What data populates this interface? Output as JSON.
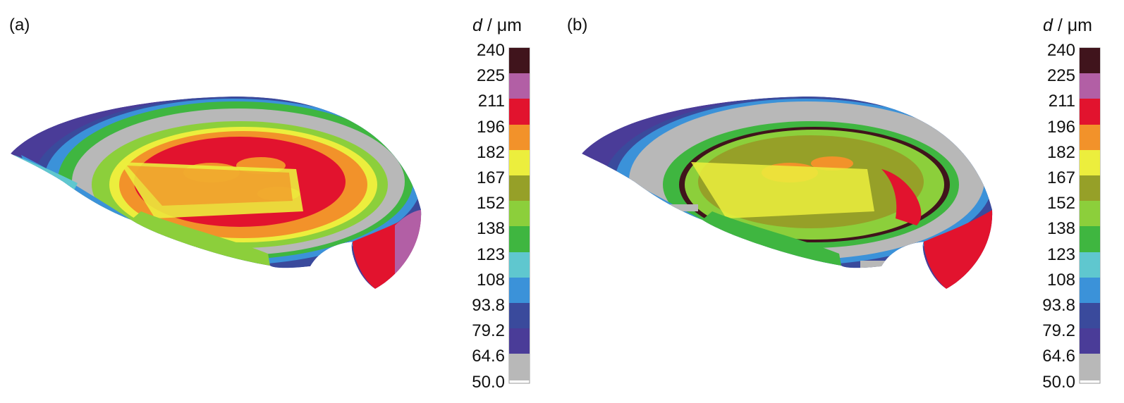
{
  "figure": {
    "panels": [
      {
        "label": "(a)",
        "colorbar": {
          "symbol": "d",
          "unit": "/ μm",
          "ticks": [
            "240",
            "225",
            "211",
            "196",
            "182",
            "167",
            "152",
            "138",
            "123",
            "108",
            "93.8",
            "79.2",
            "64.6",
            "50.0"
          ]
        }
      },
      {
        "label": "(b)",
        "colorbar": {
          "symbol": "d",
          "unit": "/ μm",
          "ticks": [
            "240",
            "225",
            "211",
            "196",
            "182",
            "167",
            "152",
            "138",
            "123",
            "108",
            "93.8",
            "79.2",
            "64.6",
            "50.0"
          ]
        }
      }
    ],
    "colorscale": [
      "#40141c",
      "#b25fa5",
      "#e2132e",
      "#f2922a",
      "#ecee3d",
      "#96a028",
      "#8ccf3b",
      "#3fb640",
      "#5fc7cf",
      "#3b92d9",
      "#3a4a9c",
      "#4a3c98",
      "#b8b8b8"
    ]
  }
}
